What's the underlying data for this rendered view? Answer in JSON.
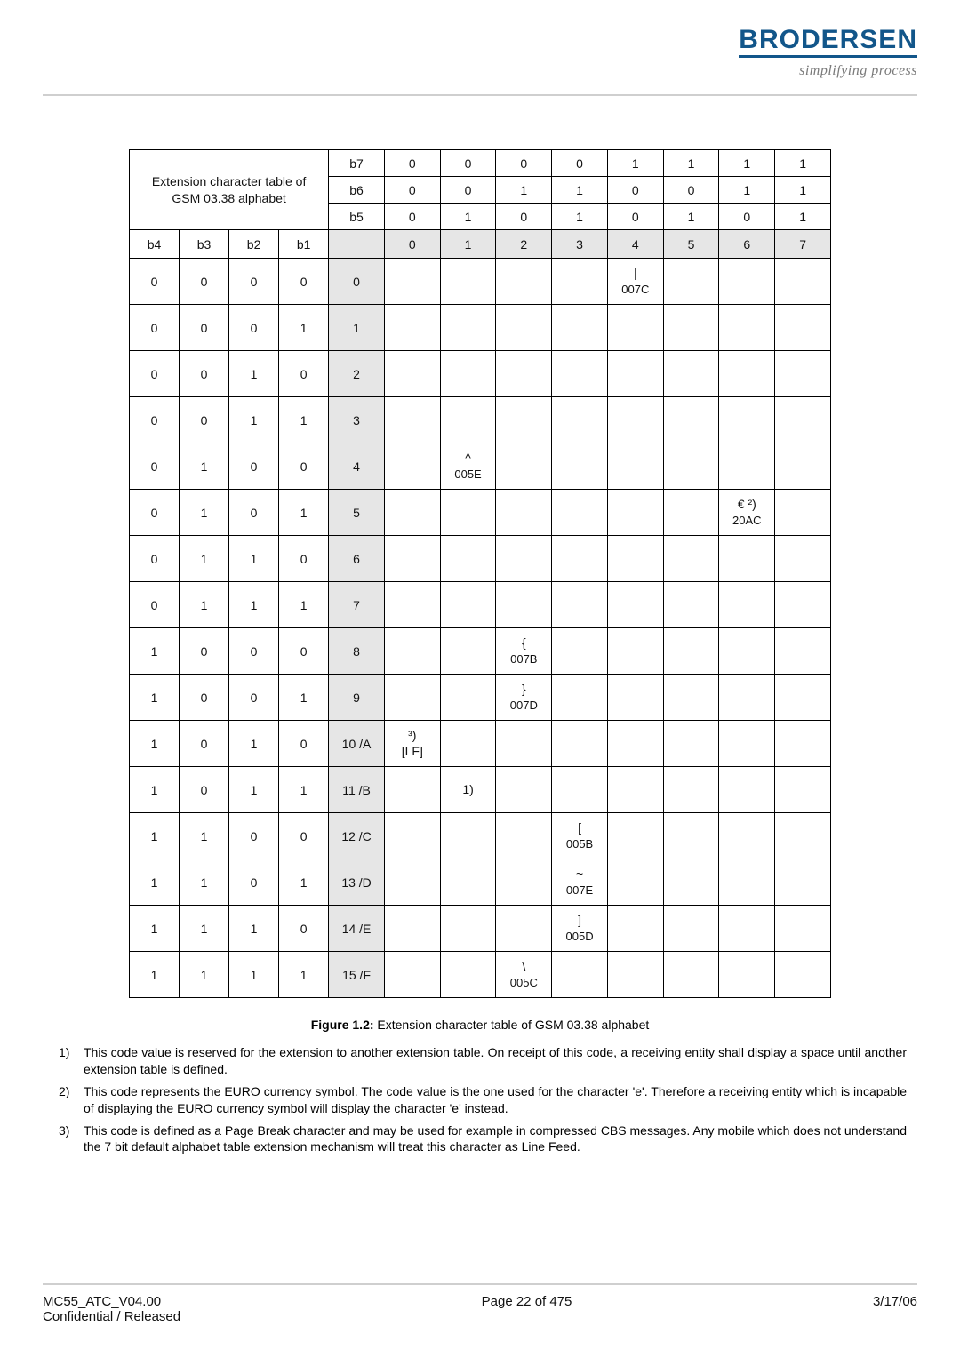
{
  "logo": {
    "text": "BRODERSEN",
    "tagline": "simplifying process"
  },
  "table_title_line1": "Extension  character  table  of",
  "table_title_line2": "GSM 03.38 alphabet",
  "top_bits": {
    "b7": [
      "0",
      "0",
      "0",
      "0",
      "1",
      "1",
      "1",
      "1"
    ],
    "b6": [
      "0",
      "0",
      "1",
      "1",
      "0",
      "0",
      "1",
      "1"
    ],
    "b5": [
      "0",
      "1",
      "0",
      "1",
      "0",
      "1",
      "0",
      "1"
    ]
  },
  "colnums": [
    "0",
    "1",
    "2",
    "3",
    "4",
    "5",
    "6",
    "7"
  ],
  "left_headers": [
    "b4",
    "b3",
    "b2",
    "b1"
  ],
  "rows": [
    {
      "bits": [
        "0",
        "0",
        "0",
        "0"
      ],
      "idx": "0",
      "cells": [
        "",
        "",
        "",
        "",
        "| 007C",
        "",
        "",
        ""
      ]
    },
    {
      "bits": [
        "0",
        "0",
        "0",
        "1"
      ],
      "idx": "1",
      "cells": [
        "",
        "",
        "",
        "",
        "",
        "",
        "",
        ""
      ]
    },
    {
      "bits": [
        "0",
        "0",
        "1",
        "0"
      ],
      "idx": "2",
      "cells": [
        "",
        "",
        "",
        "",
        "",
        "",
        "",
        ""
      ]
    },
    {
      "bits": [
        "0",
        "0",
        "1",
        "1"
      ],
      "idx": "3",
      "cells": [
        "",
        "",
        "",
        "",
        "",
        "",
        "",
        ""
      ]
    },
    {
      "bits": [
        "0",
        "1",
        "0",
        "0"
      ],
      "idx": "4",
      "cells": [
        "",
        "^ 005E",
        "",
        "",
        "",
        "",
        "",
        ""
      ]
    },
    {
      "bits": [
        "0",
        "1",
        "0",
        "1"
      ],
      "idx": "5",
      "cells": [
        "",
        "",
        "",
        "",
        "",
        "",
        "€ ²) 20AC",
        ""
      ]
    },
    {
      "bits": [
        "0",
        "1",
        "1",
        "0"
      ],
      "idx": "6",
      "cells": [
        "",
        "",
        "",
        "",
        "",
        "",
        "",
        ""
      ]
    },
    {
      "bits": [
        "0",
        "1",
        "1",
        "1"
      ],
      "idx": "7",
      "cells": [
        "",
        "",
        "",
        "",
        "",
        "",
        "",
        ""
      ]
    },
    {
      "bits": [
        "1",
        "0",
        "0",
        "0"
      ],
      "idx": "8",
      "cells": [
        "",
        "",
        "{ 007B",
        "",
        "",
        "",
        "",
        ""
      ]
    },
    {
      "bits": [
        "1",
        "0",
        "0",
        "1"
      ],
      "idx": "9",
      "cells": [
        "",
        "",
        "} 007D",
        "",
        "",
        "",
        "",
        ""
      ]
    },
    {
      "bits": [
        "1",
        "0",
        "1",
        "0"
      ],
      "idx": "10 /A",
      "cells": [
        "³) [LF]",
        "",
        "",
        "",
        "",
        "",
        "",
        ""
      ]
    },
    {
      "bits": [
        "1",
        "0",
        "1",
        "1"
      ],
      "idx": "11 /B",
      "cells": [
        "",
        "¹)",
        "",
        "",
        "",
        "",
        "",
        ""
      ]
    },
    {
      "bits": [
        "1",
        "1",
        "0",
        "0"
      ],
      "idx": "12 /C",
      "cells": [
        "",
        "",
        "",
        "[ 005B",
        "",
        "",
        "",
        ""
      ]
    },
    {
      "bits": [
        "1",
        "1",
        "0",
        "1"
      ],
      "idx": "13 /D",
      "cells": [
        "",
        "",
        "",
        "~ 007E",
        "",
        "",
        "",
        ""
      ]
    },
    {
      "bits": [
        "1",
        "1",
        "1",
        "0"
      ],
      "idx": "14 /E",
      "cells": [
        "",
        "",
        "",
        "] 005D",
        "",
        "",
        "",
        ""
      ]
    },
    {
      "bits": [
        "1",
        "1",
        "1",
        "1"
      ],
      "idx": "15 /F",
      "cells": [
        "",
        "",
        "\\ 005C",
        "",
        "",
        "",
        "",
        ""
      ]
    }
  ],
  "figure": {
    "label": "Figure 1.2:",
    "caption": "Extension character table of GSM 03.38 alphabet"
  },
  "footnotes": [
    {
      "n": "1)",
      "t": "This code value is reserved for the extension to another extension table. On receipt of this code, a receiving entity shall display a space until another extension table is defined."
    },
    {
      "n": "2)",
      "t": "This code represents the EURO currency symbol. The code value is the one used for the character 'e'. Therefore a receiving entity which is incapable of displaying the EURO currency symbol will display the character 'e' instead."
    },
    {
      "n": "3)",
      "t": "This code is defined as a Page Break character and may be used for example in compressed CBS messages. Any mobile which does not understand the 7 bit default alphabet table extension mechanism will treat this character as Line Feed."
    }
  ],
  "footer": {
    "left1": "MC55_ATC_V04.00",
    "left2": "Confidential / Released",
    "center": "Page 22 of 475",
    "right": "3/17/06"
  }
}
